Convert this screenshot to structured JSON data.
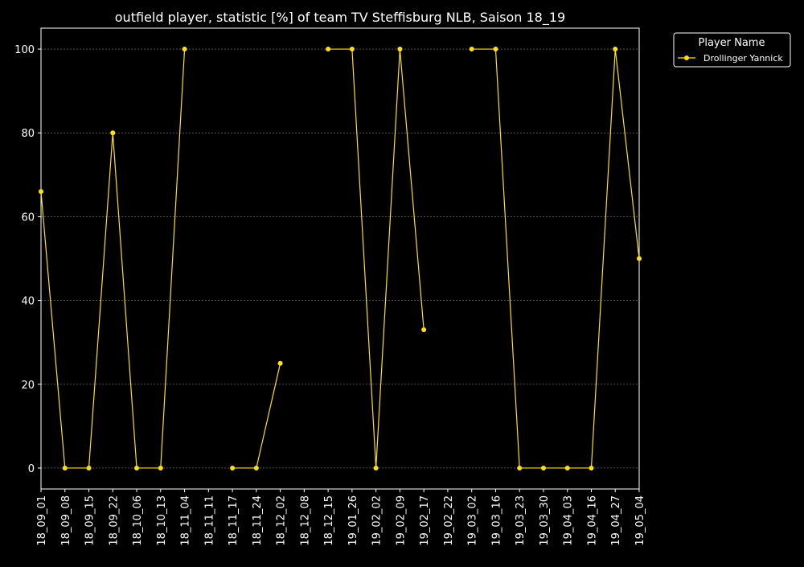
{
  "chart_data": {
    "type": "line",
    "title": "outfield player, statistic [%] of team TV Steffisburg NLB, Saison 18_19",
    "xlabel": "",
    "ylabel": "",
    "categories": [
      "18_09_01",
      "18_09_08",
      "18_09_15",
      "18_09_22",
      "18_10_06",
      "18_10_13",
      "18_11_04",
      "18_11_11",
      "18_11_17",
      "18_11_24",
      "18_12_02",
      "18_12_08",
      "18_12_15",
      "19_01_26",
      "19_02_02",
      "19_02_09",
      "19_02_17",
      "19_02_22",
      "19_03_02",
      "19_03_16",
      "19_03_23",
      "19_03_30",
      "19_04_03",
      "19_04_16",
      "19_04_27",
      "19_05_04"
    ],
    "series": [
      {
        "name": "Drollinger Yannick",
        "values": [
          66,
          0,
          0,
          80,
          0,
          0,
          100,
          null,
          0,
          0,
          25,
          null,
          100,
          100,
          0,
          100,
          33,
          null,
          100,
          100,
          0,
          0,
          0,
          0,
          100,
          50
        ]
      }
    ],
    "yticks": [
      0,
      20,
      40,
      60,
      80,
      100
    ],
    "ylim": [
      -5,
      105
    ],
    "grid": true,
    "legend": {
      "title": "Player Name",
      "placement": "outside-top-right"
    },
    "colors": {
      "background": "#000000",
      "axes": "#ffffff",
      "grid": "#808080",
      "series": "#ffe01a"
    }
  }
}
